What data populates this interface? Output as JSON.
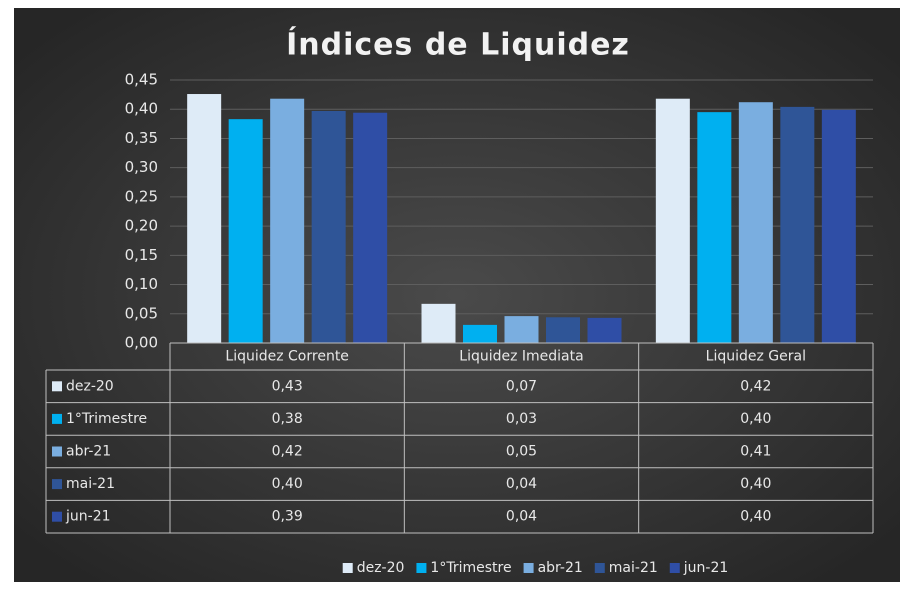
{
  "chart_data": {
    "type": "bar",
    "title": "Índices de Liquidez",
    "categories": [
      "Liquidez Corrente",
      "Liquidez Imediata",
      "Liquidez Geral"
    ],
    "series": [
      {
        "name": "dez-20",
        "color": "#deebf7",
        "values": [
          0.426,
          0.067,
          0.418
        ],
        "value_labels": [
          "0,43",
          "0,07",
          "0,42"
        ]
      },
      {
        "name": "1°Trimestre",
        "color": "#00b0f0",
        "values": [
          0.383,
          0.031,
          0.395
        ],
        "value_labels": [
          "0,38",
          "0,03",
          "0,40"
        ]
      },
      {
        "name": "abr-21",
        "color": "#7aaee0",
        "values": [
          0.418,
          0.046,
          0.412
        ],
        "value_labels": [
          "0,42",
          "0,05",
          "0,41"
        ]
      },
      {
        "name": "mai-21",
        "color": "#2f5597",
        "values": [
          0.397,
          0.044,
          0.404
        ],
        "value_labels": [
          "0,40",
          "0,04",
          "0,40"
        ]
      },
      {
        "name": "jun-21",
        "color": "#2f4ea6",
        "values": [
          0.394,
          0.043,
          0.399
        ],
        "value_labels": [
          "0,39",
          "0,04",
          "0,40"
        ]
      }
    ],
    "ylim": [
      0,
      0.45
    ],
    "yticks": [
      {
        "value": 0,
        "label": "0,00"
      },
      {
        "value": 0.05,
        "label": "0,05"
      },
      {
        "value": 0.1,
        "label": "0,10"
      },
      {
        "value": 0.15,
        "label": "0,15"
      },
      {
        "value": 0.2,
        "label": "0,20"
      },
      {
        "value": 0.25,
        "label": "0,25"
      },
      {
        "value": 0.3,
        "label": "0,30"
      },
      {
        "value": 0.35,
        "label": "0,35"
      },
      {
        "value": 0.4,
        "label": "0,40"
      },
      {
        "value": 0.45,
        "label": "0,45"
      }
    ],
    "grid": true,
    "legend": "bottom"
  }
}
